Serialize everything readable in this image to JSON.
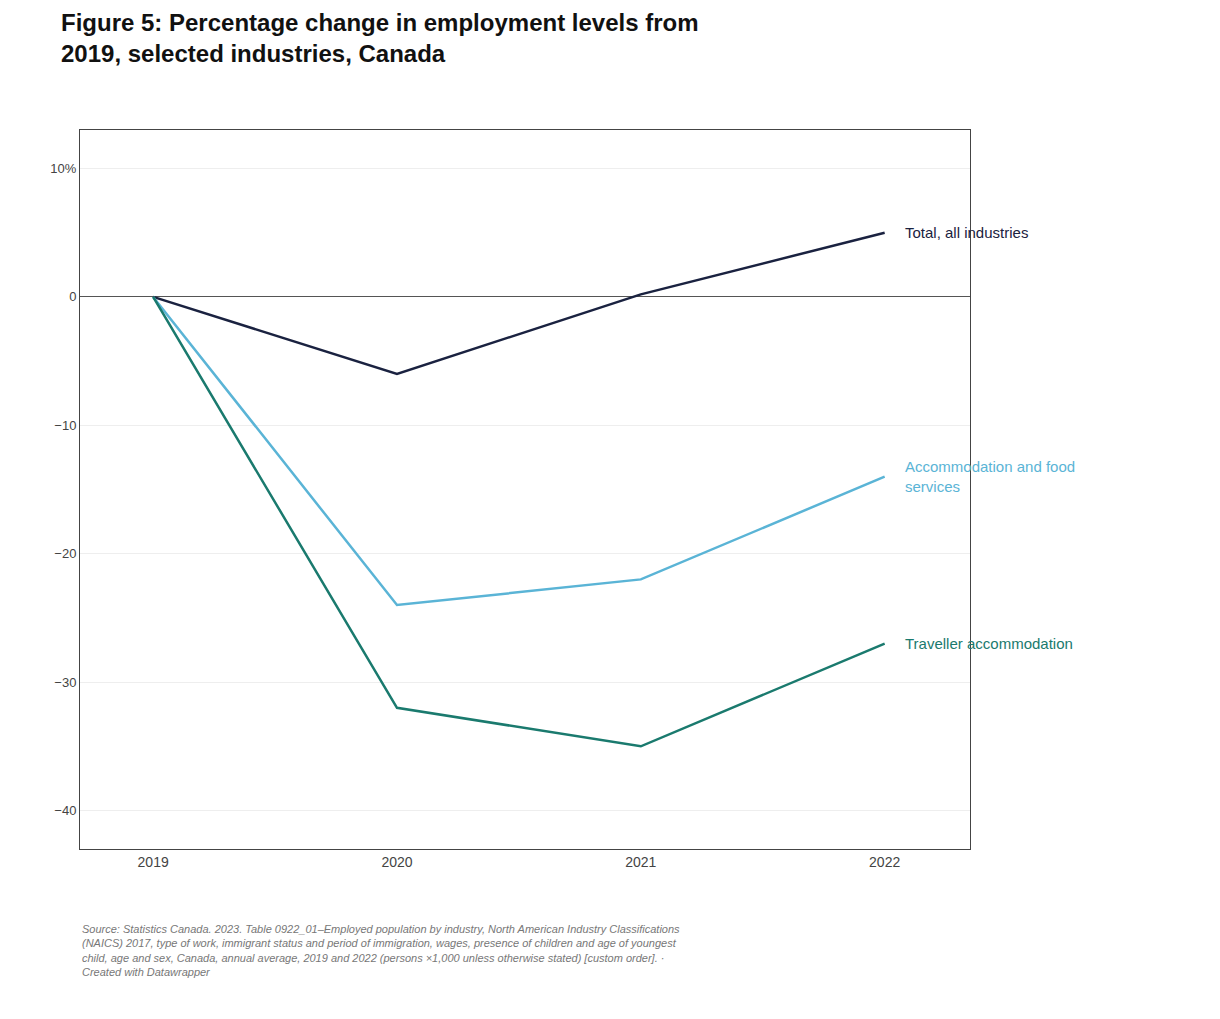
{
  "chart_data": {
    "type": "line",
    "title": "Figure 5: Percentage change in employment levels from\n2019, selected industries, Canada",
    "x": [
      2019,
      2020,
      2021,
      2022
    ],
    "series": [
      {
        "name": "Total, all industries",
        "color": "#1a2240",
        "values": [
          0,
          -6.0,
          0.2,
          5.0
        ]
      },
      {
        "name": "Accommodation and food\nservices",
        "color": "#5ab4d6",
        "values": [
          0,
          -24.0,
          -22.0,
          -14.0
        ]
      },
      {
        "name": "Traveller accommodation",
        "color": "#1a7a6e",
        "values": [
          0,
          -32.0,
          -35.0,
          -27.0
        ]
      }
    ],
    "xlim": [
      2018.7,
      2022.35
    ],
    "xticks": [
      2019,
      2020,
      2021,
      2022
    ],
    "ylim": [
      -43,
      13
    ],
    "yticks": [
      {
        "value": 10,
        "label": "10%"
      },
      0,
      {
        "value": -10,
        "label": "−10"
      },
      {
        "value": -20,
        "label": "−20"
      },
      {
        "value": -30,
        "label": "−30"
      },
      {
        "value": -40,
        "label": "−40"
      }
    ],
    "grid": "y",
    "annotations": [
      {
        "text": "Total, all industries",
        "x": 2022,
        "y": 5.0
      },
      {
        "text": "Accommodation and food\nservices",
        "x": 2022,
        "y": -14.0
      },
      {
        "text": "Traveller accommodation",
        "x": 2022,
        "y": -27.0
      }
    ],
    "source": "Source: Statistics Canada. 2023. Table 0922_01–Employed population by industry, North American Industry Classifications\n(NAICS) 2017, type of work, immigrant status and period of immigration, wages, presence of children and age of youngest\nchild, age and sex, Canada, annual average, 2019 and 2022 (persons ×1,000 unless otherwise stated) [custom order]. ·\nCreated with Datawrapper"
  }
}
